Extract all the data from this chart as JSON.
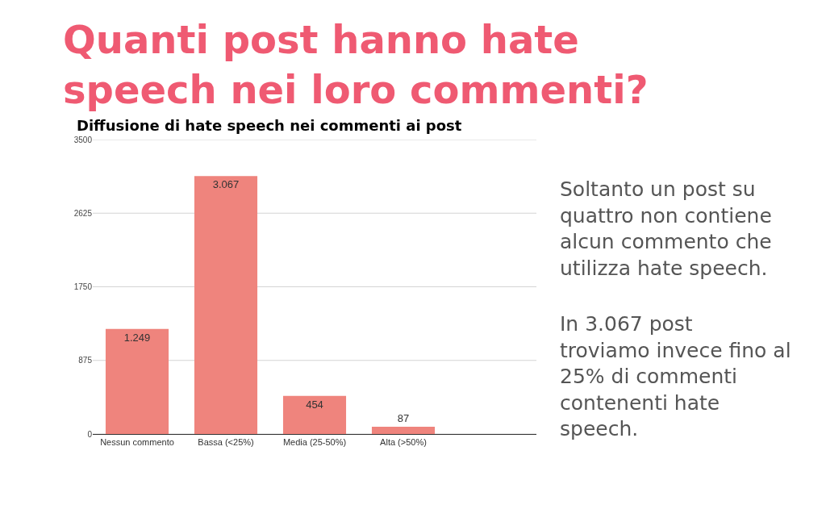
{
  "chart_data": {
    "type": "bar",
    "title": "Quanti post hanno hate\nspeech nei loro commenti?",
    "subtitle": "Diffusione di hate speech nei commenti ai post",
    "categories": [
      "Nessun commento",
      "Bassa (<25%)",
      "Media (25-50%)",
      "Alta (>50%)"
    ],
    "values": [
      1249,
      3067,
      454,
      87
    ],
    "value_labels": [
      "1.249",
      "3.067",
      "454",
      "87"
    ],
    "color": "#ef847d",
    "ylim": [
      0,
      3500
    ],
    "yticks": [
      0,
      875,
      1750,
      2625,
      3500
    ],
    "grid": "y",
    "annotations": [
      "Soltanto un post su\nquattro non contiene\nalcun commento che\nutilizza hate speech.",
      "In 3.067 post\ntroviamo invece fino al\n25% di commenti\ncontenenti hate\nspeech."
    ]
  }
}
